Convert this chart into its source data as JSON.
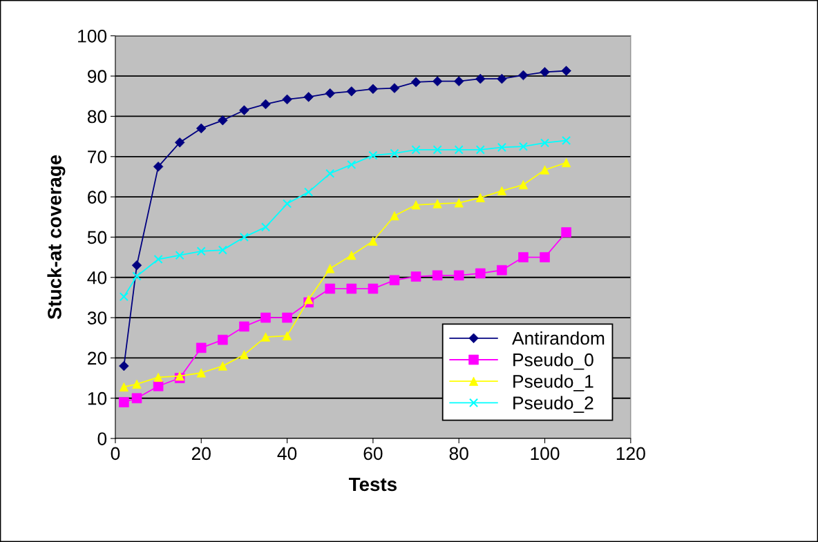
{
  "chart_data": {
    "type": "line",
    "xlabel": "Tests",
    "ylabel": "Stuck-at coverage",
    "x": [
      2,
      5,
      10,
      15,
      20,
      25,
      30,
      35,
      40,
      45,
      50,
      55,
      60,
      65,
      70,
      75,
      80,
      85,
      90,
      95,
      100,
      105
    ],
    "series": [
      {
        "name": "Antirandom",
        "color": "#000080",
        "marker": "diamond",
        "values": [
          18,
          43,
          67.5,
          73.5,
          77,
          79,
          81.5,
          83,
          84.2,
          84.8,
          85.7,
          86.2,
          86.8,
          87,
          88.5,
          88.7,
          88.7,
          89.3,
          89.3,
          90.2,
          91,
          91.3
        ]
      },
      {
        "name": "Pseudo_0",
        "color": "#ff00ff",
        "marker": "square",
        "values": [
          9,
          10,
          13,
          15,
          22.5,
          24.5,
          27.8,
          30,
          30,
          33.8,
          37.2,
          37.2,
          37.2,
          39.3,
          40.2,
          40.5,
          40.5,
          41,
          41.8,
          45,
          45,
          51.2
        ]
      },
      {
        "name": "Pseudo_1",
        "color": "#ffff00",
        "marker": "triangle",
        "values": [
          12.8,
          13.5,
          15.2,
          15.5,
          16.3,
          18,
          20.8,
          25.2,
          25.5,
          34.5,
          42.2,
          45.5,
          49,
          55.3,
          58,
          58.3,
          58.5,
          59.8,
          61.5,
          63,
          66.7,
          68.5
        ]
      },
      {
        "name": "Pseudo_2",
        "color": "#00ffff",
        "marker": "cross",
        "values": [
          35.2,
          40.3,
          44.5,
          45.5,
          46.5,
          46.8,
          50,
          52.5,
          58.3,
          61.2,
          65.8,
          68,
          70.3,
          70.8,
          71.7,
          71.7,
          71.7,
          71.7,
          72.3,
          72.5,
          73.4,
          74
        ]
      }
    ],
    "xlim": [
      0,
      120
    ],
    "xticks": [
      0,
      20,
      40,
      60,
      80,
      100,
      120
    ],
    "ylim": [
      0,
      100
    ],
    "yticks": [
      0,
      10,
      20,
      30,
      40,
      50,
      60,
      70,
      80,
      90,
      100
    ],
    "grid": "y",
    "legend": "bottom right",
    "line_style": "solid"
  }
}
